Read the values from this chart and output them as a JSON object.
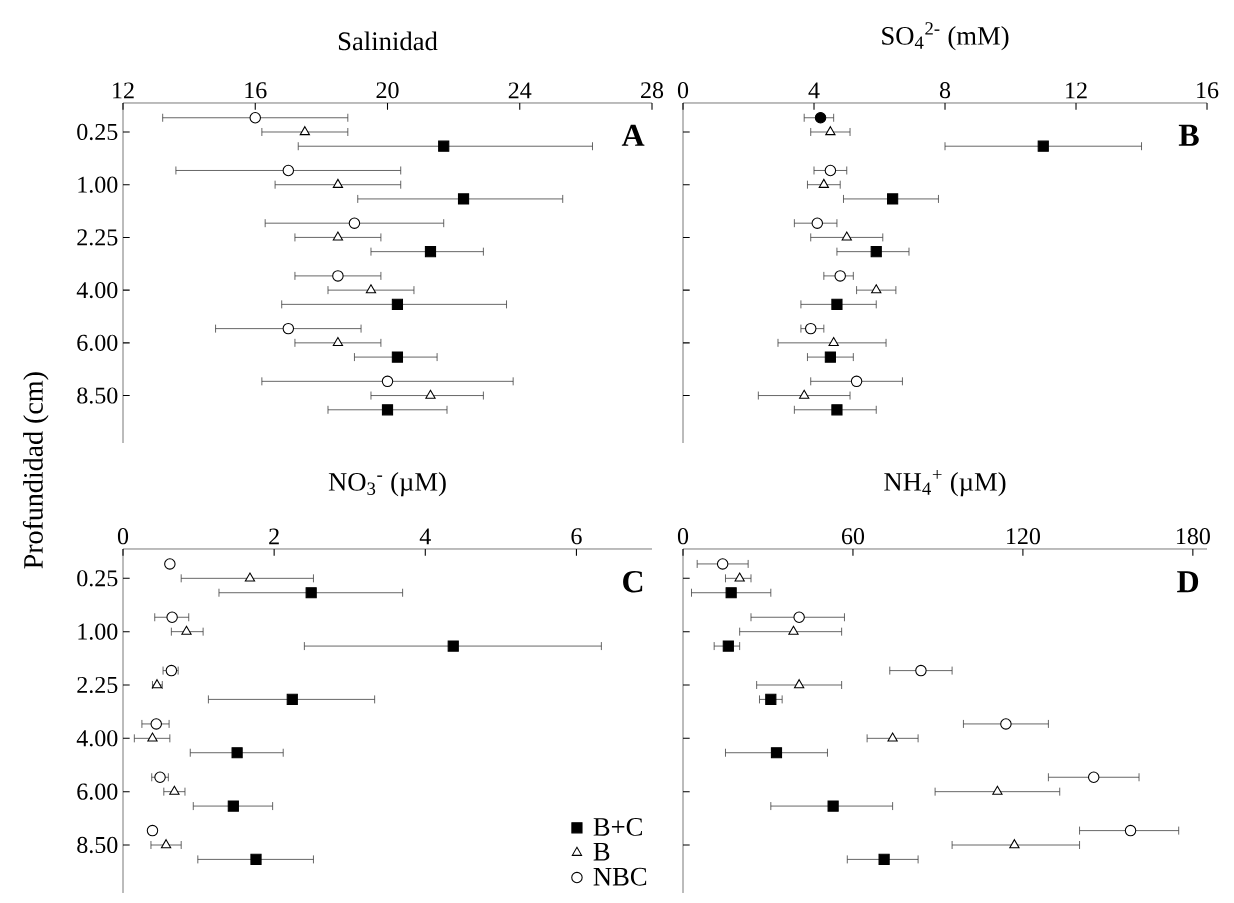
{
  "chart_data": [
    {
      "type": "scatter",
      "title": "Salinidad",
      "ylabel": "Profundidad (cm)",
      "orientation": "horizontal",
      "categories": [
        "0.25",
        "1.00",
        "2.25",
        "4.00",
        "6.00",
        "8.50"
      ],
      "xlim": [
        12,
        28
      ],
      "xticks": [
        12,
        16,
        20,
        24,
        28
      ],
      "annotations": [
        "A"
      ],
      "series": [
        {
          "color": "#000000",
          "marker": "square",
          "values": [
            21.7,
            22.3,
            21.3,
            20.3,
            20.3,
            20.0
          ],
          "errors": [
            [
              17.3,
              26.2
            ],
            [
              19.1,
              25.3
            ],
            [
              19.5,
              22.9
            ],
            [
              16.8,
              23.6
            ],
            [
              19.0,
              21.5
            ],
            [
              18.2,
              21.8
            ]
          ]
        },
        {
          "color": "#ffffff",
          "marker": "triangle",
          "values": [
            17.5,
            18.5,
            18.5,
            19.5,
            18.5,
            21.3
          ],
          "errors": [
            [
              16.2,
              18.8
            ],
            [
              16.6,
              20.4
            ],
            [
              17.2,
              19.8
            ],
            [
              18.2,
              20.8
            ],
            [
              17.2,
              19.8
            ],
            [
              19.5,
              22.9
            ]
          ]
        },
        {
          "color": "#ffffff",
          "marker": "circle",
          "values": [
            16.0,
            17.0,
            19.0,
            18.5,
            17.0,
            20.0
          ],
          "errors": [
            [
              13.2,
              18.8
            ],
            [
              13.6,
              20.4
            ],
            [
              16.3,
              21.7
            ],
            [
              17.2,
              19.8
            ],
            [
              14.8,
              19.2
            ],
            [
              16.2,
              23.8
            ]
          ]
        }
      ]
    },
    {
      "type": "scatter",
      "title": "SO$_{4}$$^{2-}$ (mM)",
      "orientation": "horizontal",
      "tick_labels": "x",
      "categories": [
        "0.25",
        "1.00",
        "2.25",
        "4.00",
        "6.00",
        "8.50"
      ],
      "xlim": [
        0,
        16
      ],
      "xticks": [
        0,
        4,
        8,
        12,
        16
      ],
      "annotations": [
        "B"
      ],
      "series": [
        {
          "color": "#000000",
          "marker": "square",
          "values": [
            11.0,
            6.4,
            5.9,
            4.7,
            4.5,
            4.7
          ],
          "errors": [
            [
              8.0,
              14.0
            ],
            [
              4.9,
              7.8
            ],
            [
              4.7,
              6.9
            ],
            [
              3.6,
              5.9
            ],
            [
              3.8,
              5.2
            ],
            [
              3.4,
              5.9
            ]
          ]
        },
        {
          "color": "#ffffff",
          "marker": "triangle",
          "values": [
            4.5,
            4.3,
            5.0,
            5.9,
            4.6,
            3.7
          ],
          "errors": [
            [
              3.9,
              5.1
            ],
            [
              3.8,
              4.8
            ],
            [
              3.9,
              6.1
            ],
            [
              5.3,
              6.5
            ],
            [
              2.9,
              6.2
            ],
            [
              2.3,
              5.1
            ]
          ]
        },
        {
          "colors": [
            "#000000",
            "#ffffff",
            "#ffffff",
            "#ffffff",
            "#ffffff",
            "#ffffff"
          ],
          "marker": "circle",
          "values": [
            4.2,
            4.5,
            4.1,
            4.8,
            3.9,
            5.3
          ],
          "errors": [
            [
              3.7,
              4.6
            ],
            [
              4.0,
              5.0
            ],
            [
              3.4,
              4.7
            ],
            [
              4.3,
              5.2
            ],
            [
              3.6,
              4.3
            ],
            [
              3.9,
              6.7
            ]
          ]
        }
      ]
    },
    {
      "type": "scatter",
      "title": "NO$_{3}$$^{-}$ (µM)",
      "orientation": "horizontal",
      "categories": [
        "0.25",
        "1.00",
        "2.25",
        "4.00",
        "6.00",
        "8.50"
      ],
      "xlim": [
        0,
        7
      ],
      "xticks": [
        0,
        2,
        4,
        6
      ],
      "annotations": [
        "C"
      ],
      "legend": "bottom right",
      "series": [
        {
          "name": "B+C",
          "color": "#000000",
          "marker": "square",
          "values": [
            2.49,
            4.37,
            2.24,
            1.51,
            1.46,
            1.76
          ],
          "errors": [
            [
              1.27,
              3.7
            ],
            [
              2.4,
              6.33
            ],
            [
              1.13,
              3.33
            ],
            [
              0.89,
              2.12
            ],
            [
              0.93,
              1.98
            ],
            [
              0.99,
              2.52
            ]
          ]
        },
        {
          "name": "B",
          "color": "#ffffff",
          "marker": "triangle",
          "values": [
            1.68,
            0.84,
            0.45,
            0.39,
            0.68,
            0.57
          ],
          "errors": [
            [
              0.77,
              2.52
            ],
            [
              0.64,
              1.06
            ],
            [
              0.39,
              0.52
            ],
            [
              0.15,
              0.62
            ],
            [
              0.54,
              0.82
            ],
            [
              0.37,
              0.77
            ]
          ]
        },
        {
          "name": "NBC",
          "color": "#ffffff",
          "marker": "circle",
          "values": [
            0.62,
            0.65,
            0.64,
            0.44,
            0.49,
            0.39
          ],
          "errors": [
            null,
            [
              0.42,
              0.87
            ],
            [
              0.53,
              0.73
            ],
            [
              0.25,
              0.61
            ],
            [
              0.38,
              0.6
            ],
            null
          ]
        }
      ]
    },
    {
      "type": "scatter",
      "title": "NH$_{4}$$^{+}$ (µM)",
      "orientation": "horizontal",
      "tick_labels": "x",
      "categories": [
        "0.25",
        "1.00",
        "2.25",
        "4.00",
        "6.00",
        "8.50"
      ],
      "xlim": [
        0,
        185
      ],
      "xticks": [
        0,
        60,
        120,
        180
      ],
      "annotations": [
        "D"
      ],
      "series": [
        {
          "color": "#000000",
          "marker": "square",
          "values": [
            17,
            16,
            31,
            33,
            53,
            71
          ],
          "errors": [
            [
              3,
              31
            ],
            [
              11,
              20
            ],
            [
              27,
              35
            ],
            [
              15,
              51
            ],
            [
              31,
              74
            ],
            [
              58,
              83
            ]
          ]
        },
        {
          "color": "#ffffff",
          "marker": "triangle",
          "values": [
            20,
            39,
            41,
            74,
            111,
            117
          ],
          "errors": [
            [
              15,
              24
            ],
            [
              20,
              56
            ],
            [
              26,
              56
            ],
            [
              65,
              83
            ],
            [
              89,
              133
            ],
            [
              95,
              140
            ]
          ]
        },
        {
          "color": "#ffffff",
          "marker": "circle",
          "values": [
            14,
            41,
            84,
            114,
            145,
            158
          ],
          "errors": [
            [
              5,
              23
            ],
            [
              24,
              57
            ],
            [
              73,
              95
            ],
            [
              99,
              129
            ],
            [
              129,
              161
            ],
            [
              140,
              175
            ]
          ]
        }
      ]
    }
  ]
}
